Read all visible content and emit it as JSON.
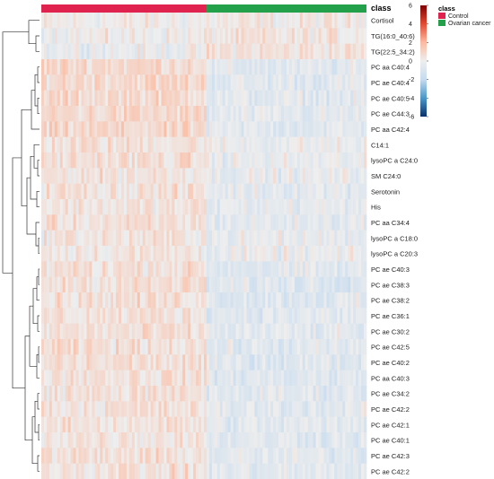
{
  "chart_data": {
    "type": "heatmap",
    "annotation_track": {
      "title": "class",
      "groups": [
        {
          "name": "Control",
          "color": "#e0234e",
          "n_samples": 62
        },
        {
          "name": "Ovarian cancer",
          "color": "#23a14a",
          "n_samples": 60
        }
      ]
    },
    "rows": [
      {
        "label": "Cortisol",
        "control": 0.05,
        "cancer": 0.15
      },
      {
        "label": "TG(16:0_40:6)",
        "control": 0.05,
        "cancer": 0.3
      },
      {
        "label": "TG(22:5_34:2)",
        "control": -0.15,
        "cancer": 0.45
      },
      {
        "label": "PC aa C40:4",
        "control": 0.9,
        "cancer": -0.7
      },
      {
        "label": "PC ae C40:4",
        "control": 0.9,
        "cancer": -0.6
      },
      {
        "label": "PC ae C40:5",
        "control": 0.8,
        "cancer": -0.6
      },
      {
        "label": "PC ae C44:3",
        "control": 0.8,
        "cancer": -0.6
      },
      {
        "label": "PC aa C42:4",
        "control": 0.8,
        "cancer": -0.6
      },
      {
        "label": "C14:1",
        "control": 0.55,
        "cancer": -0.2
      },
      {
        "label": "lysoPC a C24:0",
        "control": 0.6,
        "cancer": -0.3
      },
      {
        "label": "SM C24:0",
        "control": 0.5,
        "cancer": -0.3
      },
      {
        "label": "Serotonin",
        "control": 0.5,
        "cancer": -0.4
      },
      {
        "label": "His",
        "control": 0.4,
        "cancer": -0.4
      },
      {
        "label": "PC aa C34:4",
        "control": 0.5,
        "cancer": -0.5
      },
      {
        "label": "lysoPC a C18:0",
        "control": 0.4,
        "cancer": -0.3
      },
      {
        "label": "lysoPC a C20:3",
        "control": 0.4,
        "cancer": -0.3
      },
      {
        "label": "PC ae C40:3",
        "control": 0.6,
        "cancer": -0.7
      },
      {
        "label": "PC ae C38:3",
        "control": 0.6,
        "cancer": -0.7
      },
      {
        "label": "PC ae C38:2",
        "control": 0.6,
        "cancer": -0.7
      },
      {
        "label": "PC ae C36:1",
        "control": 0.5,
        "cancer": -0.6
      },
      {
        "label": "PC ae C30:2",
        "control": 0.5,
        "cancer": -0.6
      },
      {
        "label": "PC ae C42:5",
        "control": 0.6,
        "cancer": -0.7
      },
      {
        "label": "PC ae C40:2",
        "control": 0.6,
        "cancer": -0.7
      },
      {
        "label": "PC aa C40:3",
        "control": 0.6,
        "cancer": -0.7
      },
      {
        "label": "PC ae C34:2",
        "control": 0.5,
        "cancer": -0.6
      },
      {
        "label": "PC ae C42:2",
        "control": 0.5,
        "cancer": -0.6
      },
      {
        "label": "PC ae C42:1",
        "control": 0.5,
        "cancer": -0.6
      },
      {
        "label": "PC ae C40:1",
        "control": 0.5,
        "cancer": -0.6
      },
      {
        "label": "PC ae C42:3",
        "control": 0.5,
        "cancer": -0.6
      },
      {
        "label": "PC ae C42:2",
        "control": 0.5,
        "cancer": -0.6
      }
    ],
    "colorbar": {
      "min": -6,
      "max": 6,
      "ticks": [
        6,
        4,
        2,
        0,
        -2,
        -4,
        -6
      ],
      "colors": [
        "#08306b",
        "#4a98c9",
        "#c6dbef",
        "#eeeeee",
        "#fcbba1",
        "#e34a33",
        "#7f0000"
      ]
    },
    "legend_position": "top-right"
  }
}
